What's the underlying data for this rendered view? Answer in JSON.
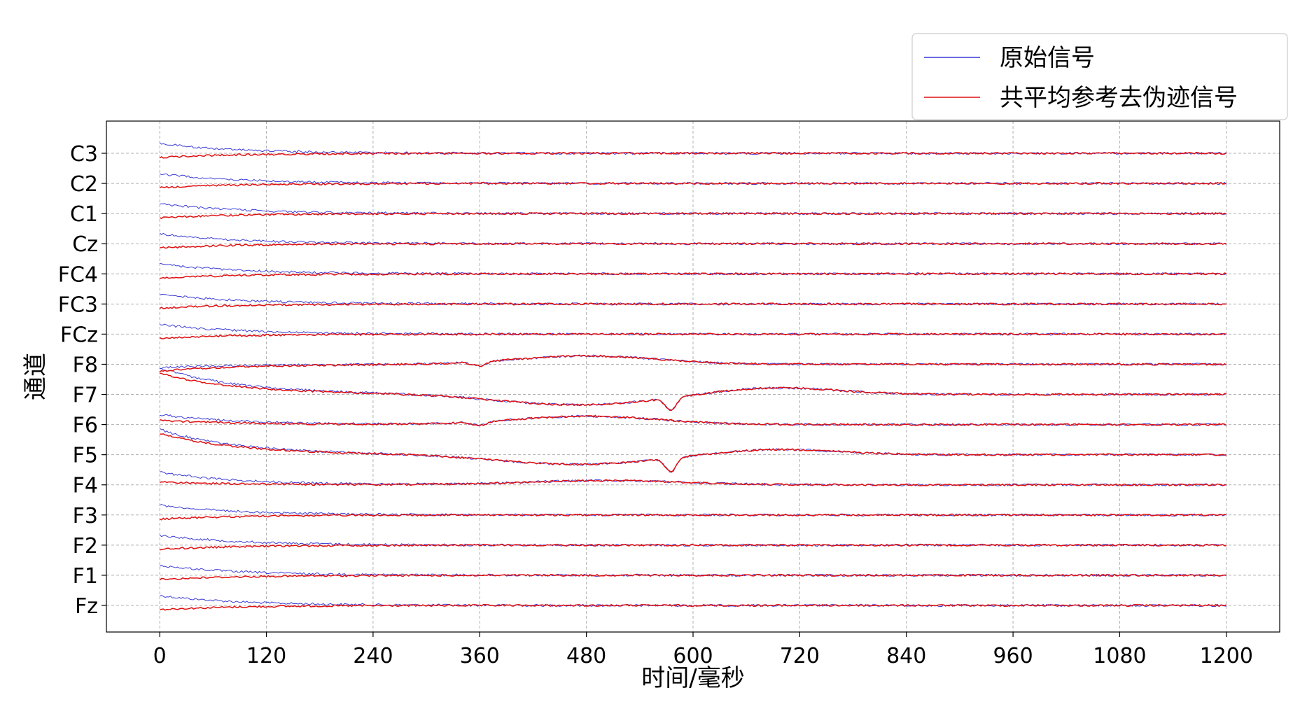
{
  "chart_data": {
    "type": "line",
    "xlabel": "时间/毫秒",
    "ylabel": "通道",
    "xlim": [
      -60,
      1260
    ],
    "x_ticks": [
      0,
      120,
      240,
      360,
      480,
      600,
      720,
      840,
      960,
      1080,
      1200
    ],
    "channels": [
      "Fz",
      "F1",
      "F2",
      "F3",
      "F4",
      "F5",
      "F6",
      "F7",
      "F8",
      "FCz",
      "FC3",
      "FC4",
      "Cz",
      "C1",
      "C2",
      "C3"
    ],
    "grid": true,
    "legend_position": "top-right",
    "series": [
      {
        "name": "原始信号",
        "color": "#3b3bd6"
      },
      {
        "name": "共平均参考去伪迹信号",
        "color": "#e01010"
      }
    ],
    "x_range_signal": [
      0,
      1200
    ]
  }
}
